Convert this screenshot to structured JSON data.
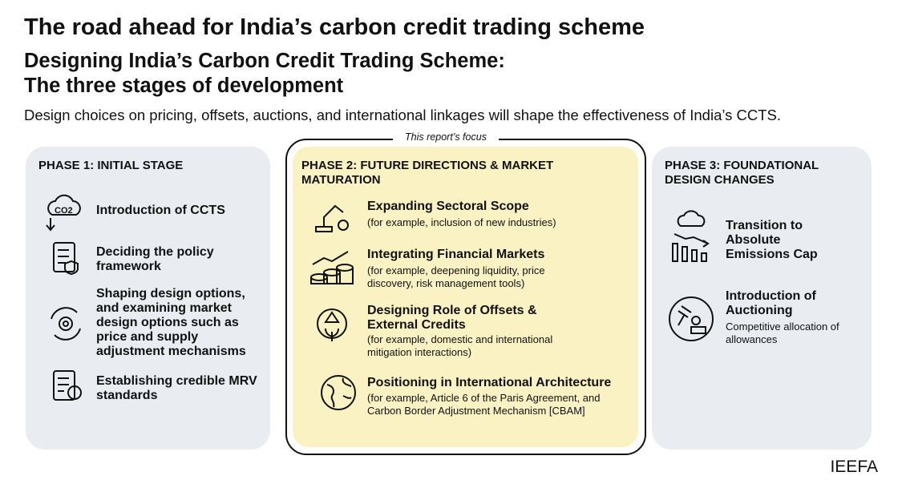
{
  "header": {
    "title": "The road ahead for India’s carbon credit trading scheme",
    "subtitle": [
      "Designing India’s Carbon Credit Trading Scheme:",
      "The three stages of development"
    ],
    "description": "Design choices on pricing, offsets, auctions, and international linkages will shape the effectiveness of India’s CCTS."
  },
  "focus_label": "This report’s focus",
  "phases": [
    {
      "heading": "PHASE 1: INITIAL STAGE",
      "items": [
        {
          "title": "Introduction of CCTS"
        },
        {
          "title": "Deciding the policy framework"
        },
        {
          "title": "Shaping design options, and examining market design options such as price and supply adjustment mechanisms"
        },
        {
          "title": "Establishing credible MRV standards"
        }
      ]
    },
    {
      "heading": "PHASE 2: FUTURE DIRECTIONS & MARKET MATURATION",
      "items": [
        {
          "title": "Expanding Sectoral Scope",
          "detail": "(for example, inclusion of new industries)"
        },
        {
          "title": "Integrating Financial Markets",
          "detail": "(for example, deepening liquidity, price discovery, risk management tools)"
        },
        {
          "title": "Designing Role of Offsets & External Credits",
          "detail": "(for example, domestic and international mitigation interactions)"
        },
        {
          "title": "Positioning in International Architecture",
          "detail": "(for example, Article 6 of the Paris Agreement, and Carbon Border Adjustment Mechanism [CBAM]"
        }
      ]
    },
    {
      "heading": "PHASE 3: FOUNDATIONAL DESIGN CHANGES",
      "items": [
        {
          "title": "Transition to Absolute Emissions Cap"
        },
        {
          "title": "Introduction of Auctioning",
          "detail": "Competitive allocation of allowances"
        }
      ]
    }
  ],
  "footer": {
    "brand": "IEEFA"
  }
}
